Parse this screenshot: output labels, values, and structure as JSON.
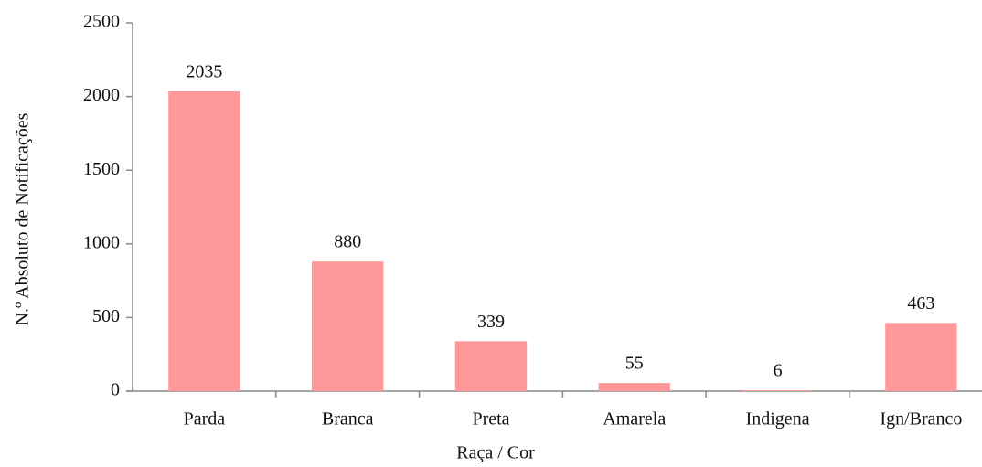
{
  "chart_data": {
    "type": "bar",
    "xlabel": "Raça / Cor",
    "ylabel": "N.º Absoluto de Notificações",
    "categories": [
      "Parda",
      "Branca",
      "Preta",
      "Amarela",
      "Indigena",
      "Ign/Branco"
    ],
    "values": [
      2035,
      880,
      339,
      55,
      6,
      463
    ],
    "color": "#ff9999",
    "ylim": [
      0,
      2500
    ],
    "yticks": [
      0,
      500,
      1000,
      1500,
      2000,
      2500
    ],
    "grid": false
  }
}
